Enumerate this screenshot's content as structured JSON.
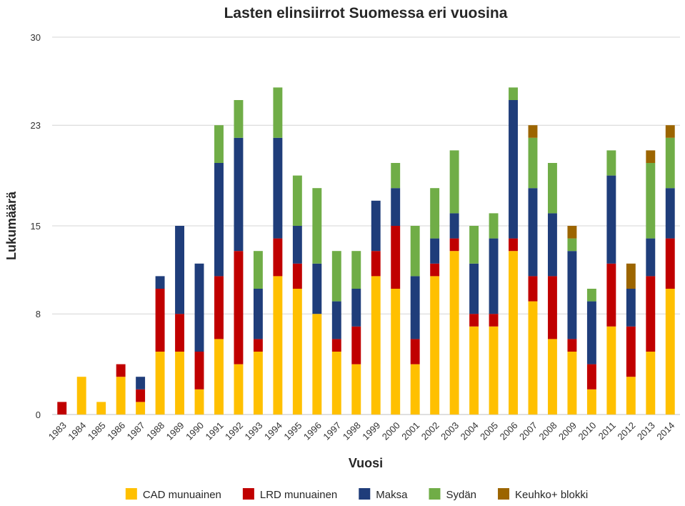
{
  "chart_data": {
    "type": "bar",
    "stacked": true,
    "title": "Lasten elinsiirrot Suomessa eri vuosina",
    "xlabel": "Vuosi",
    "ylabel": "Lukumäärä",
    "ylim": [
      0,
      30
    ],
    "yticks": [
      "0",
      "8",
      "15",
      "23",
      "30"
    ],
    "grid": true,
    "legend_position": "bottom",
    "categories": [
      "1983",
      "1984",
      "1985",
      "1986",
      "1987",
      "1988",
      "1989",
      "1990",
      "1991",
      "1992",
      "1993",
      "1994",
      "1995",
      "1996",
      "1997",
      "1998",
      "1999",
      "2000",
      "2001",
      "2002",
      "2003",
      "2004",
      "2005",
      "2006",
      "2007",
      "2008",
      "2009",
      "2010",
      "2011",
      "2012",
      "2013",
      "2014"
    ],
    "series": [
      {
        "name": "CAD munuainen",
        "color": "#FFC000",
        "values": [
          0,
          3,
          1,
          3,
          1,
          5,
          5,
          2,
          6,
          4,
          5,
          11,
          10,
          8,
          5,
          4,
          11,
          10,
          4,
          11,
          13,
          7,
          7,
          13,
          9,
          6,
          5,
          2,
          7,
          3,
          5,
          10
        ]
      },
      {
        "name": "LRD munuainen",
        "color": "#C00000",
        "values": [
          1,
          0,
          0,
          1,
          1,
          5,
          3,
          3,
          5,
          9,
          1,
          3,
          2,
          0,
          1,
          3,
          2,
          5,
          2,
          1,
          1,
          1,
          1,
          1,
          2,
          5,
          1,
          2,
          5,
          4,
          6,
          4
        ]
      },
      {
        "name": "Maksa",
        "color": "#1F3D7A",
        "values": [
          0,
          0,
          0,
          0,
          1,
          1,
          7,
          7,
          9,
          9,
          4,
          8,
          3,
          4,
          3,
          3,
          4,
          3,
          5,
          2,
          2,
          4,
          6,
          11,
          7,
          5,
          7,
          5,
          7,
          3,
          3,
          4
        ]
      },
      {
        "name": "Sydän",
        "color": "#70AD47",
        "values": [
          0,
          0,
          0,
          0,
          0,
          0,
          0,
          0,
          3,
          3,
          3,
          4,
          4,
          6,
          4,
          3,
          0,
          2,
          4,
          4,
          5,
          3,
          2,
          1,
          4,
          4,
          1,
          1,
          2,
          0,
          6,
          4
        ]
      },
      {
        "name": "Keuhko+ blokki",
        "color": "#9C6500",
        "values": [
          0,
          0,
          0,
          0,
          0,
          0,
          0,
          0,
          0,
          0,
          0,
          0,
          0,
          0,
          0,
          0,
          0,
          0,
          0,
          0,
          0,
          0,
          0,
          0,
          1,
          0,
          1,
          0,
          0,
          2,
          1,
          1
        ]
      }
    ]
  }
}
